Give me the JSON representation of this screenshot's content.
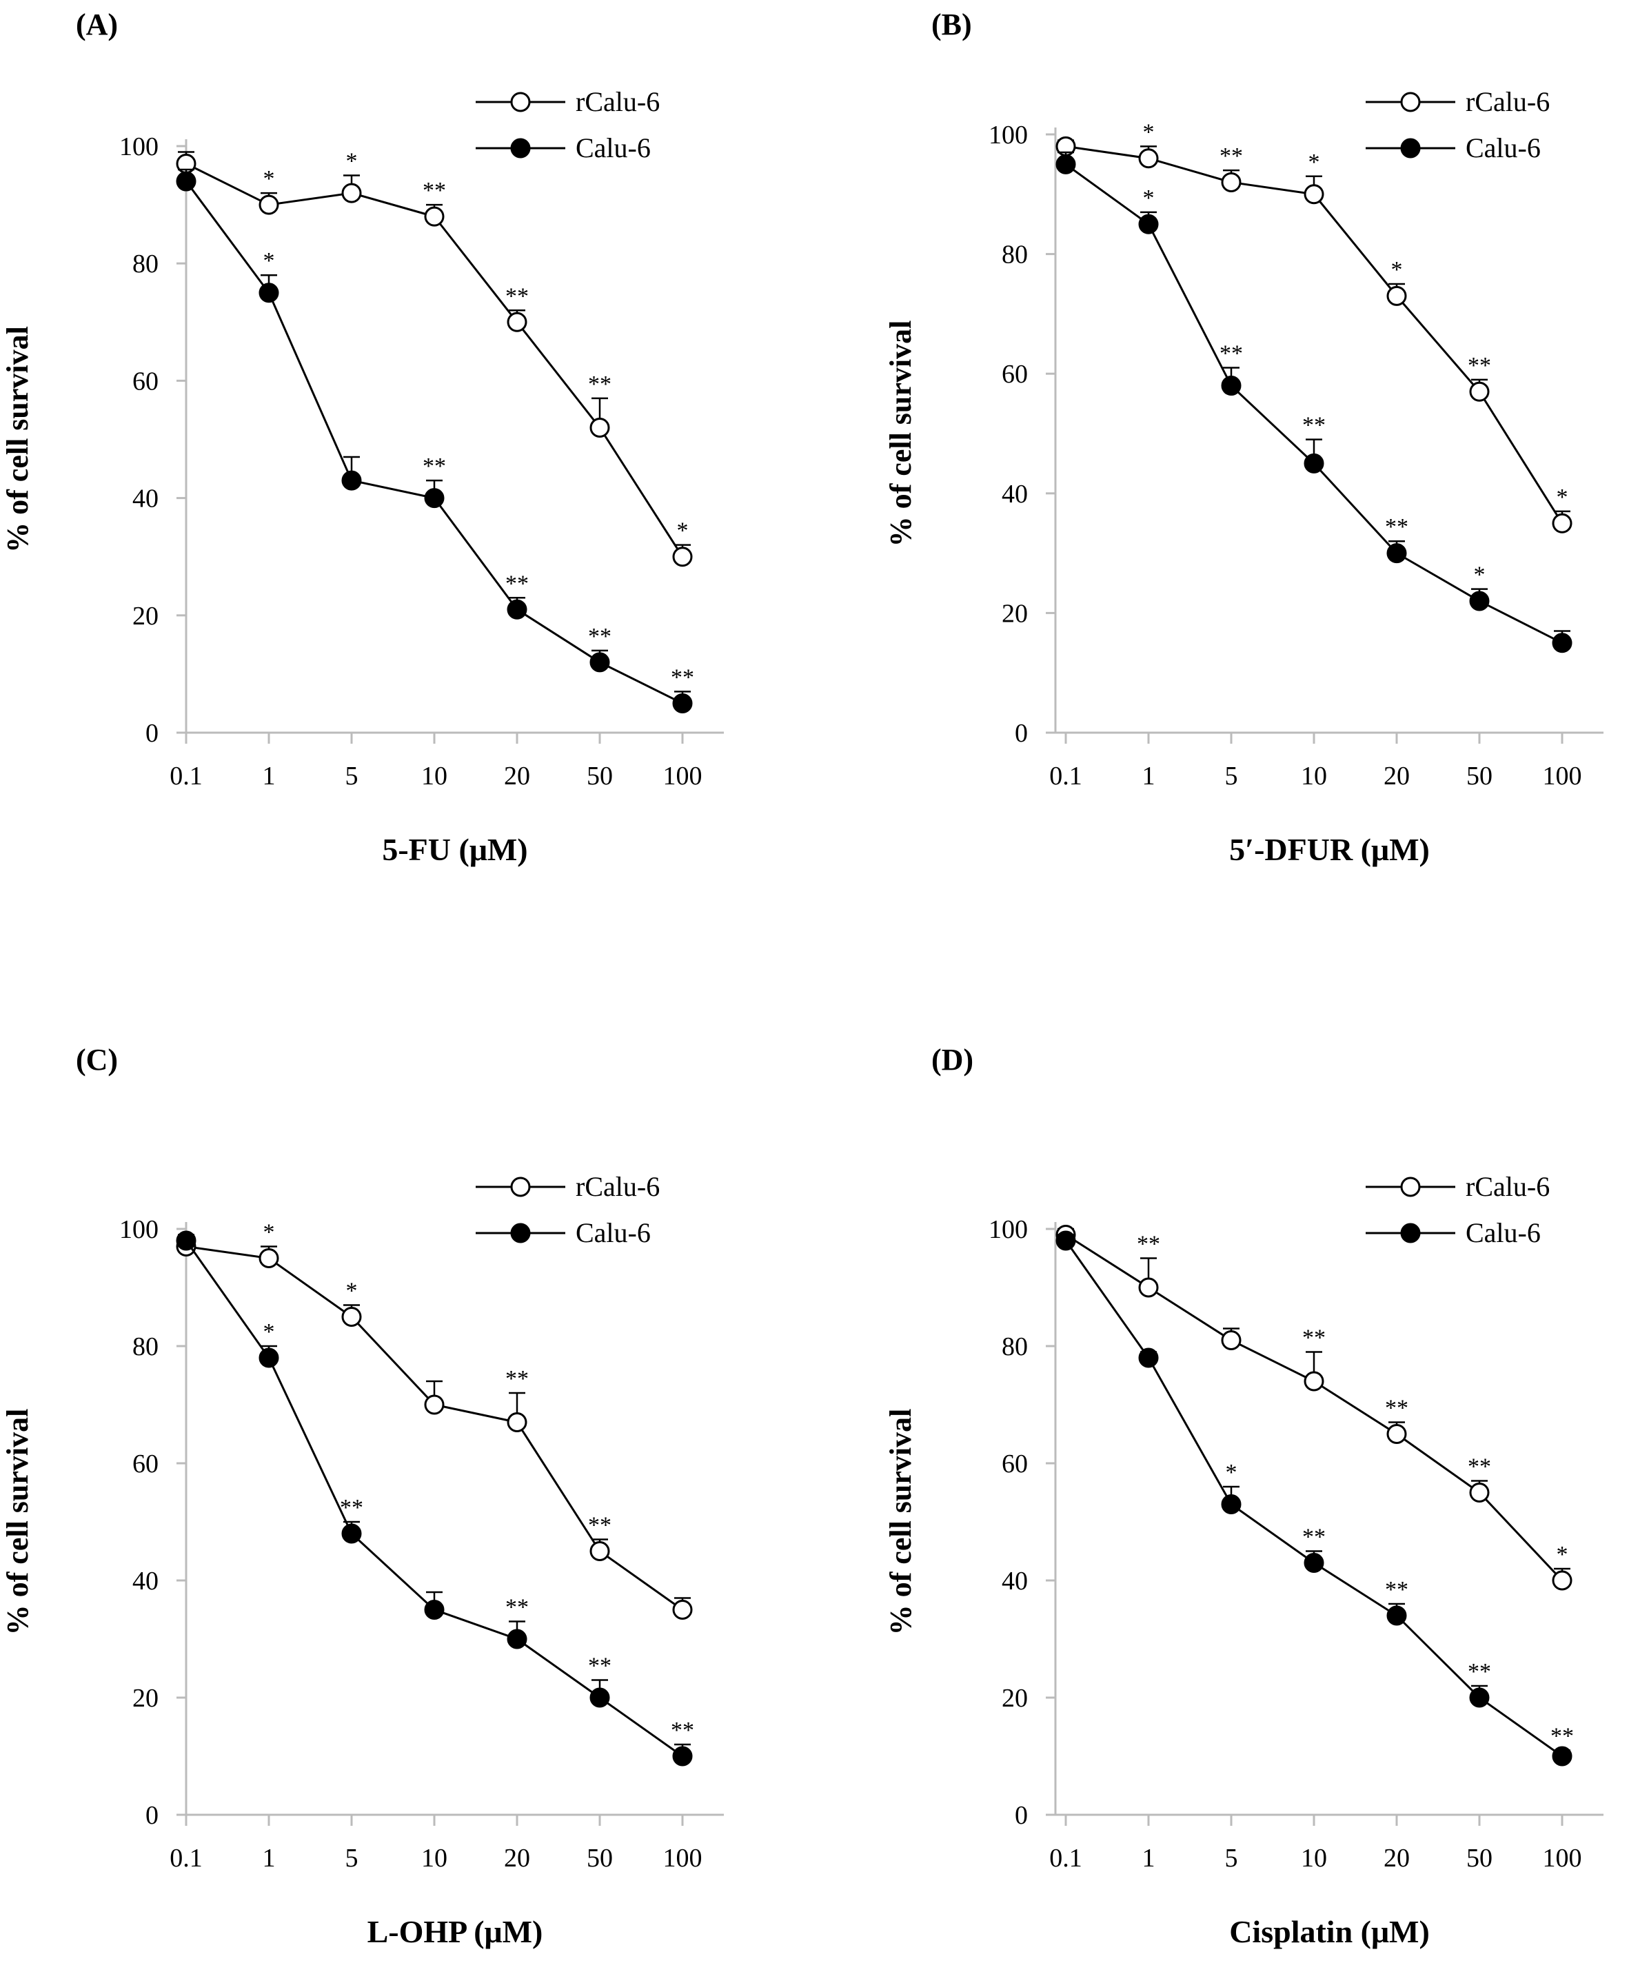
{
  "chart_data": [
    {
      "type": "line",
      "panel_label": "(A)",
      "xlabel": "5-FU (μM)",
      "ylabel": "% of cell survival",
      "categories": [
        "0.1",
        "1",
        "5",
        "10",
        "20",
        "50",
        "100"
      ],
      "ylim": [
        0,
        100
      ],
      "yticks": [
        "0",
        "20",
        "40",
        "60",
        "80",
        "100"
      ],
      "legend_position": "top-right",
      "series": [
        {
          "name": "rCalu-6",
          "marker": "open-circle",
          "values": [
            97,
            90,
            92,
            88,
            70,
            52,
            30
          ],
          "errors": [
            2,
            2,
            3,
            2,
            2,
            5,
            2
          ],
          "significance": [
            "",
            "*",
            "*",
            "**",
            "**",
            "**",
            "*"
          ]
        },
        {
          "name": "Calu-6",
          "marker": "filled-circle",
          "values": [
            94,
            75,
            43,
            40,
            21,
            12,
            5
          ],
          "errors": [
            2,
            3,
            4,
            3,
            2,
            2,
            2
          ],
          "significance": [
            "",
            "*",
            "",
            "**",
            "**",
            "**",
            "**"
          ]
        }
      ]
    },
    {
      "type": "line",
      "panel_label": "(B)",
      "xlabel": "5′-DFUR (μM)",
      "ylabel": "% of cell survival",
      "categories": [
        "0.1",
        "1",
        "5",
        "10",
        "20",
        "50",
        "100"
      ],
      "ylim": [
        0,
        100
      ],
      "yticks": [
        "0",
        "20",
        "40",
        "60",
        "80",
        "100"
      ],
      "legend_position": "top-right",
      "series": [
        {
          "name": "rCalu-6",
          "marker": "open-circle",
          "values": [
            98,
            96,
            92,
            90,
            73,
            57,
            35
          ],
          "errors": [
            1,
            2,
            2,
            3,
            2,
            2,
            2
          ],
          "significance": [
            "",
            "*",
            "**",
            "*",
            "*",
            "**",
            "*"
          ]
        },
        {
          "name": "Calu-6",
          "marker": "filled-circle",
          "values": [
            95,
            85,
            58,
            45,
            30,
            22,
            15
          ],
          "errors": [
            2,
            2,
            3,
            4,
            2,
            2,
            2
          ],
          "significance": [
            "",
            "*",
            "**",
            "**",
            "**",
            "*",
            ""
          ]
        }
      ]
    },
    {
      "type": "line",
      "panel_label": "(C)",
      "xlabel": "L-OHP (μM)",
      "ylabel": "% of cell survival",
      "categories": [
        "0.1",
        "1",
        "5",
        "10",
        "20",
        "50",
        "100"
      ],
      "ylim": [
        0,
        100
      ],
      "yticks": [
        "0",
        "20",
        "40",
        "60",
        "80",
        "100"
      ],
      "legend_position": "top-right",
      "series": [
        {
          "name": "rCalu-6",
          "marker": "open-circle",
          "values": [
            97,
            95,
            85,
            70,
            67,
            45,
            35
          ],
          "errors": [
            1,
            2,
            2,
            4,
            5,
            2,
            2
          ],
          "significance": [
            "",
            "*",
            "*",
            "",
            "**",
            "**",
            ""
          ]
        },
        {
          "name": "Calu-6",
          "marker": "filled-circle",
          "values": [
            98,
            78,
            48,
            35,
            30,
            20,
            10
          ],
          "errors": [
            1,
            2,
            2,
            3,
            3,
            3,
            2
          ],
          "significance": [
            "",
            "*",
            "**",
            "",
            "**",
            "**",
            "**"
          ]
        }
      ]
    },
    {
      "type": "line",
      "panel_label": "(D)",
      "xlabel": "Cisplatin (μM)",
      "ylabel": "% of cell survival",
      "categories": [
        "0.1",
        "1",
        "5",
        "10",
        "20",
        "50",
        "100"
      ],
      "ylim": [
        0,
        100
      ],
      "yticks": [
        "0",
        "20",
        "40",
        "60",
        "80",
        "100"
      ],
      "legend_position": "top-right",
      "series": [
        {
          "name": "rCalu-6",
          "marker": "open-circle",
          "values": [
            99,
            90,
            81,
            74,
            65,
            55,
            40
          ],
          "errors": [
            1,
            5,
            2,
            5,
            2,
            2,
            2
          ],
          "significance": [
            "",
            "**",
            "",
            "**",
            "**",
            "**",
            "*"
          ]
        },
        {
          "name": "Calu-6",
          "marker": "filled-circle",
          "values": [
            98,
            78,
            53,
            43,
            34,
            20,
            10
          ],
          "errors": [
            1,
            1,
            3,
            2,
            2,
            2,
            1
          ],
          "significance": [
            "",
            "",
            "*",
            "**",
            "**",
            "**",
            "**"
          ]
        }
      ]
    }
  ]
}
